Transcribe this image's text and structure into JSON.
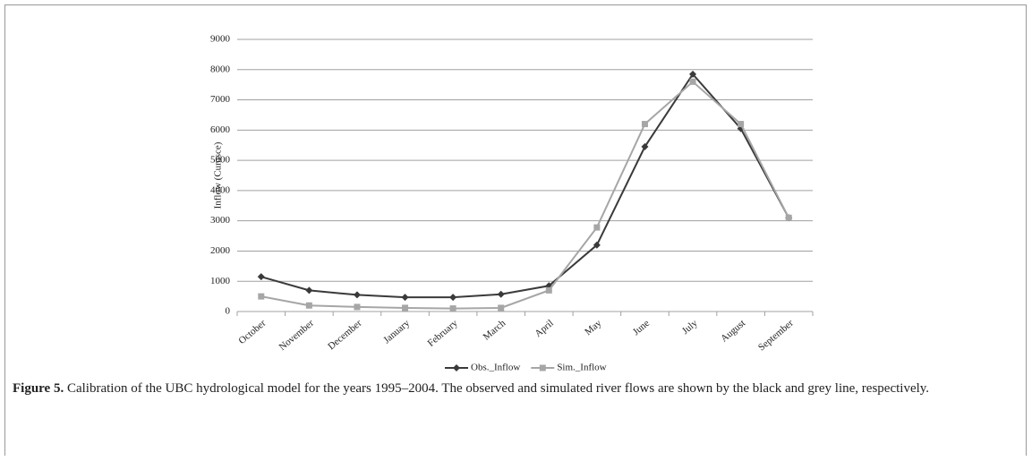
{
  "chart_data": {
    "type": "line",
    "y_label": "Inflow (Cumsce)",
    "categories": [
      "October",
      "November",
      "December",
      "January",
      "February",
      "March",
      "April",
      "May",
      "June",
      "July",
      "August",
      "September"
    ],
    "series": [
      {
        "name": "Obs._Inflow",
        "color": "#3a3a3a",
        "marker": "diamond",
        "values": [
          1150,
          700,
          550,
          470,
          470,
          570,
          850,
          2200,
          5450,
          7850,
          6050,
          3100
        ]
      },
      {
        "name": "Sim._Inflow",
        "color": "#a6a6a6",
        "marker": "square",
        "values": [
          500,
          200,
          150,
          120,
          100,
          120,
          700,
          2780,
          6200,
          7600,
          6200,
          3100
        ]
      }
    ],
    "ylim": [
      0,
      9000
    ],
    "yticks": [
      0,
      1000,
      2000,
      3000,
      4000,
      5000,
      6000,
      7000,
      8000,
      9000
    ],
    "grid": true,
    "legend": "bottom"
  },
  "caption": {
    "label": "Figure 5.",
    "text": "Calibration of the UBC hydrological model for the years 1995–2004. The observed and simulated river flows are shown by the black and grey line, respectively."
  }
}
